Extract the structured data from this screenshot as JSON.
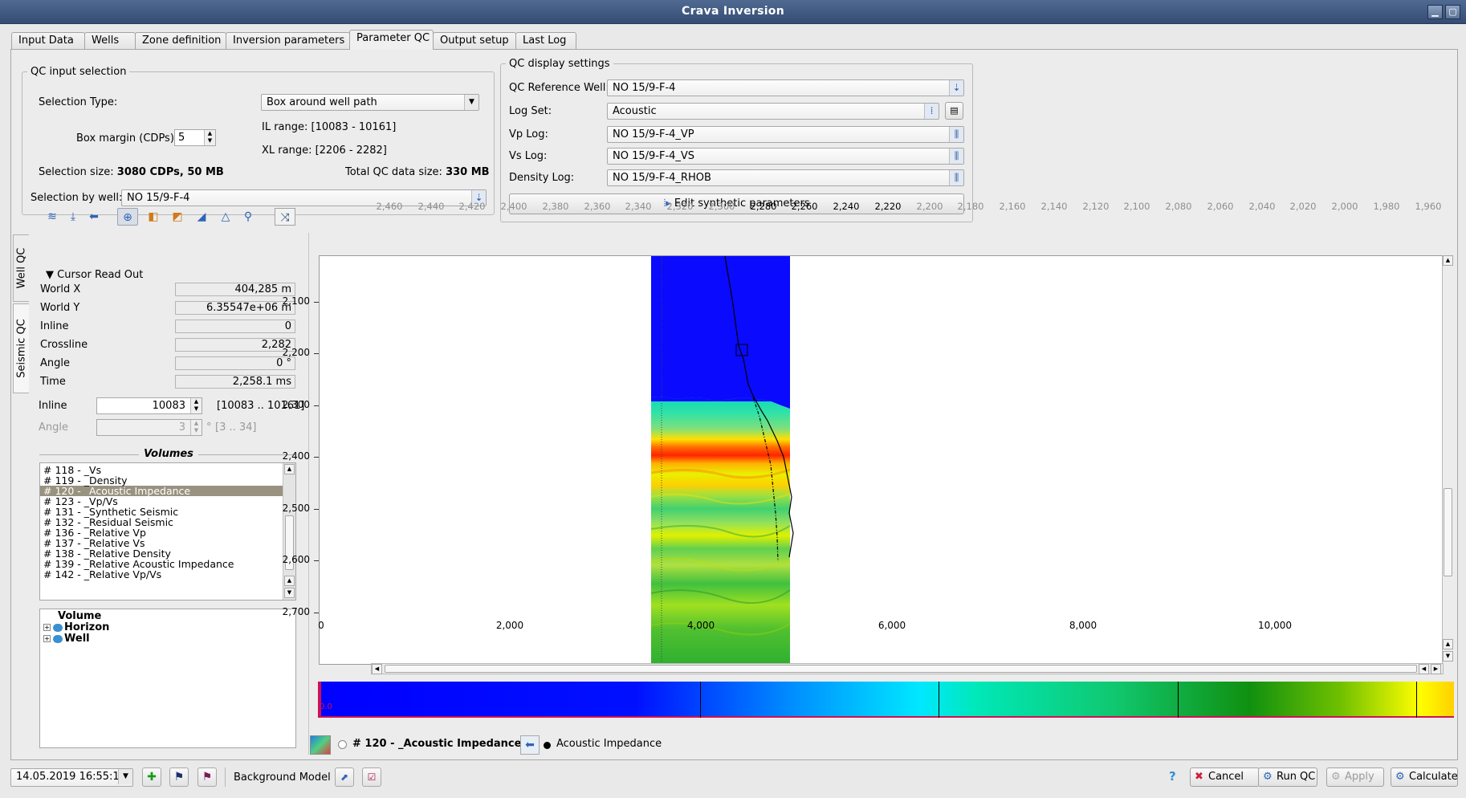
{
  "window": {
    "title": "Crava Inversion"
  },
  "tabs": [
    {
      "label": "Input Data"
    },
    {
      "label": "Wells"
    },
    {
      "label": "Zone definition"
    },
    {
      "label": "Inversion parameters"
    },
    {
      "label": "Parameter QC"
    },
    {
      "label": "Output setup"
    },
    {
      "label": "Last Log"
    }
  ],
  "qc_input": {
    "legend": "QC input selection",
    "selection_type_label": "Selection Type:",
    "selection_type_value": "Box around well path",
    "box_margin_label": "Box margin (CDPs):",
    "box_margin_value": "5",
    "il_range": "IL range: [10083 - 10161]",
    "xl_range": "XL range: [2206 - 2282]",
    "selection_size_label": "Selection size:",
    "selection_size_value": "3080 CDPs, 50 MB",
    "total_size_label": "Total QC data size:",
    "total_size_value": "330 MB",
    "selection_by_well_label": "Selection by well:",
    "selection_by_well_value": "NO 15/9-F-4"
  },
  "qc_display": {
    "legend": "QC display settings",
    "ref_well_label": "QC Reference Well:",
    "ref_well_value": "NO 15/9-F-4",
    "log_set_label": "Log Set:",
    "log_set_value": "Acoustic",
    "vp_label": "Vp Log:",
    "vp_value": "NO 15/9-F-4_VP",
    "vs_label": "Vs Log:",
    "vs_value": "NO 15/9-F-4_VS",
    "density_label": "Density Log:",
    "density_value": "NO 15/9-F-4_RHOB",
    "edit_synthetic": "Edit synthetic parameters"
  },
  "side_tabs": {
    "well_qc": "Well QC",
    "seismic_qc": "Seismic QC"
  },
  "cursor": {
    "header": "Cursor Read Out",
    "rows": [
      {
        "label": "World X",
        "value": "404,285 m"
      },
      {
        "label": "World Y",
        "value": "6.35547e+06 m"
      },
      {
        "label": "Inline",
        "value": "0"
      },
      {
        "label": "Crossline",
        "value": "2,282"
      },
      {
        "label": "Angle",
        "value": "0 °"
      },
      {
        "label": "Time",
        "value": "2,258.1 ms"
      }
    ]
  },
  "inline_ctrl": {
    "label": "Inline",
    "value": "10083",
    "range": "[10083 .. 10161]"
  },
  "angle_ctrl": {
    "label": "Angle",
    "value": "3",
    "unit": "°",
    "range": "[3 .. 34]"
  },
  "volumes": {
    "title": "Volumes",
    "items": [
      "# 118 - _Vs",
      "# 119 - _Density",
      "# 120 - _Acoustic Impedance",
      "# 123 - _Vp/Vs",
      "# 131 - _Synthetic Seismic",
      "# 132 - _Residual Seismic",
      "# 136 - _Relative Vp",
      "# 137 - _Relative Vs",
      "# 138 - _Relative Density",
      "# 139 - _Relative Acoustic Impedance",
      "# 142 - _Relative Vp/Vs"
    ],
    "selected_index": 2
  },
  "tree": {
    "root": "Volume",
    "children": [
      "Horizon",
      "Well"
    ]
  },
  "plot": {
    "x_ticks": [
      "2,460",
      "2,440",
      "2,420",
      "2,400",
      "2,380",
      "2,360",
      "2,340",
      "2,320",
      "2,300",
      "2,280",
      "2,260",
      "2,240",
      "2,220",
      "2,200",
      "2,180",
      "2,160",
      "2,140",
      "2,120",
      "2,100",
      "2,080",
      "2,060",
      "2,040",
      "2,020",
      "2,000",
      "1,980",
      "1,960"
    ],
    "x_highlighted": [
      "2,280",
      "2,260",
      "2,240",
      "2,220"
    ],
    "y_ticks": [
      "2,100",
      "2,200",
      "2,300",
      "2,400",
      "2,500",
      "2,600",
      "2,700"
    ]
  },
  "colorbar": {
    "zero_label": "0.0",
    "ticks": [
      "0",
      "2,000",
      "4,000",
      "6,000",
      "8,000",
      "10,000"
    ]
  },
  "legend_row": {
    "volume": "# 120 - _Acoustic Impedance",
    "log": "Acoustic Impedance"
  },
  "footer": {
    "timestamp": "14.05.2019 16:55:11",
    "background_model": "Background Model",
    "cancel": "Cancel",
    "run_qc": "Run QC",
    "apply": "Apply",
    "calculate": "Calculate",
    "help_icon": "?"
  },
  "colors": {
    "title_bar": "#3f5a82",
    "selection": "#999280",
    "impedance_low": "#0a0aff",
    "impedance_high": "#ff2a00"
  }
}
